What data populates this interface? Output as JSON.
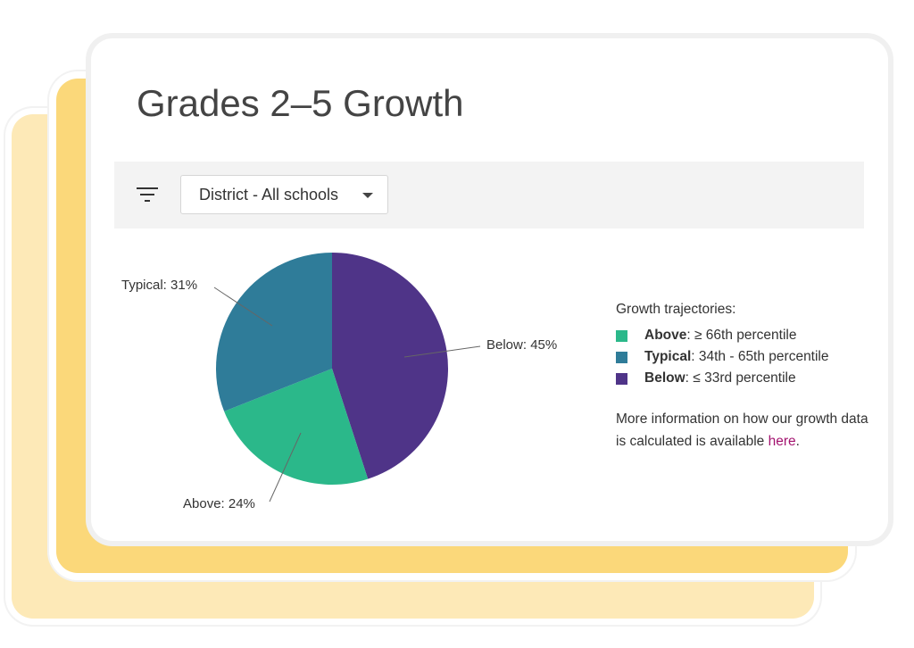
{
  "title": "Grades 2–5 Growth",
  "filter": {
    "icon": "filter-icon",
    "dropdown_value": "District - All schools"
  },
  "colors": {
    "above": "#2bb88a",
    "typical": "#2f7c99",
    "below": "#4f3488"
  },
  "chart_data": {
    "type": "pie",
    "slices": [
      {
        "name": "Below",
        "value": 45,
        "label": "Below: 45%",
        "color": "#4f3488"
      },
      {
        "name": "Above",
        "value": 24,
        "label": "Above: 24%",
        "color": "#2bb88a"
      },
      {
        "name": "Typical",
        "value": 31,
        "label": "Typical: 31%",
        "color": "#2f7c99"
      }
    ]
  },
  "legend": {
    "heading": "Growth trajectories:",
    "items": [
      {
        "bold": "Above",
        "text": ": ≥ 66th percentile"
      },
      {
        "bold": "Typical",
        "text": ": 34th - 65th percentile"
      },
      {
        "bold": "Below",
        "text": ": ≤ 33rd percentile"
      }
    ]
  },
  "info": {
    "text": "More information on how our growth data is calculated is available ",
    "link": "here",
    "end": "."
  }
}
